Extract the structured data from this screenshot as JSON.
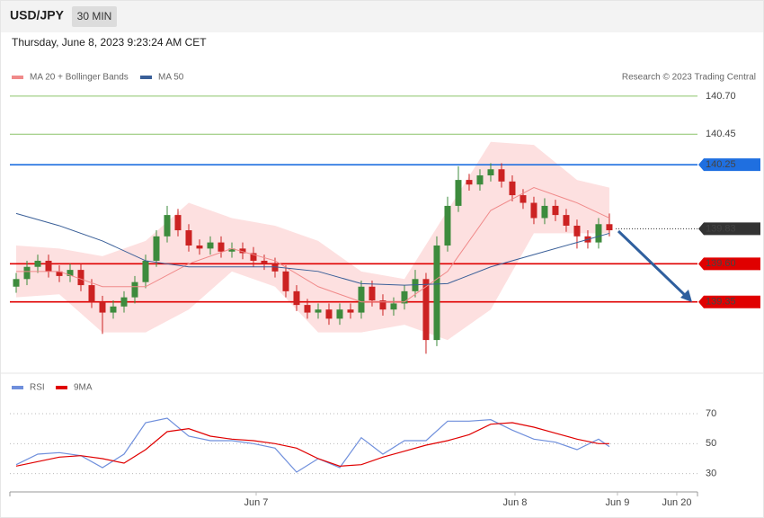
{
  "header": {
    "symbol": "USD/JPY",
    "interval": "30 MIN",
    "timestamp": "Thursday, June 8, 2023 9:23:24 AM CET"
  },
  "chart_data": [
    {
      "type": "candlestick",
      "annotation": "Research © 2023 Trading Central",
      "up_color": "#3d8b3d",
      "down_color": "#cc2222",
      "x": [
        0,
        1,
        2,
        3,
        4,
        5,
        6,
        7,
        8,
        9,
        10,
        11,
        12,
        13,
        14,
        15,
        16,
        17,
        18,
        19,
        20,
        21,
        22,
        23,
        24,
        25,
        26,
        27,
        28,
        29,
        30,
        31,
        32,
        33,
        34,
        35,
        36,
        37,
        38,
        39,
        40,
        41,
        42,
        43,
        44,
        45,
        46,
        47,
        48,
        49,
        50,
        51,
        52,
        53,
        54,
        55
      ],
      "open": [
        139.45,
        139.5,
        139.58,
        139.62,
        139.55,
        139.52,
        139.56,
        139.46,
        139.35,
        139.28,
        139.32,
        139.38,
        139.48,
        139.62,
        139.78,
        139.92,
        139.82,
        139.72,
        139.7,
        139.74,
        139.68,
        139.7,
        139.67,
        139.62,
        139.6,
        139.55,
        139.42,
        139.33,
        139.28,
        139.3,
        139.24,
        139.3,
        139.28,
        139.45,
        139.36,
        139.3,
        139.34,
        139.42,
        139.5,
        139.1,
        139.72,
        139.98,
        140.15,
        140.12,
        140.18,
        140.22,
        140.14,
        140.05,
        140.0,
        139.9,
        139.98,
        139.92,
        139.85,
        139.78,
        139.74,
        139.86
      ],
      "high": [
        139.54,
        139.62,
        139.66,
        139.66,
        139.59,
        139.6,
        139.6,
        139.5,
        139.39,
        139.36,
        139.42,
        139.52,
        139.66,
        139.82,
        139.98,
        139.96,
        139.86,
        139.76,
        139.78,
        139.78,
        139.74,
        139.74,
        139.71,
        139.66,
        139.64,
        139.59,
        139.46,
        139.37,
        139.34,
        139.34,
        139.34,
        139.34,
        139.49,
        139.49,
        139.4,
        139.38,
        139.46,
        139.56,
        139.54,
        139.78,
        140.04,
        140.24,
        140.19,
        140.22,
        140.26,
        140.26,
        140.18,
        140.09,
        140.04,
        140.03,
        140.02,
        139.96,
        139.89,
        139.82,
        139.9,
        139.93
      ],
      "low": [
        139.41,
        139.46,
        139.54,
        139.51,
        139.48,
        139.48,
        139.42,
        139.31,
        139.14,
        139.24,
        139.28,
        139.34,
        139.44,
        139.58,
        139.74,
        139.78,
        139.68,
        139.66,
        139.66,
        139.64,
        139.64,
        139.63,
        139.58,
        139.56,
        139.51,
        139.38,
        139.29,
        139.24,
        139.24,
        139.2,
        139.2,
        139.24,
        139.24,
        139.32,
        139.26,
        139.26,
        139.3,
        139.38,
        139.01,
        139.06,
        139.68,
        139.94,
        140.08,
        140.08,
        140.14,
        140.1,
        140.01,
        139.96,
        139.86,
        139.86,
        139.88,
        139.81,
        139.7,
        139.7,
        139.7,
        139.78
      ],
      "close": [
        139.5,
        139.58,
        139.62,
        139.55,
        139.52,
        139.56,
        139.46,
        139.35,
        139.28,
        139.32,
        139.38,
        139.48,
        139.62,
        139.78,
        139.92,
        139.82,
        139.72,
        139.7,
        139.74,
        139.68,
        139.7,
        139.67,
        139.62,
        139.6,
        139.55,
        139.42,
        139.33,
        139.28,
        139.3,
        139.24,
        139.3,
        139.28,
        139.45,
        139.36,
        139.3,
        139.34,
        139.42,
        139.5,
        139.1,
        139.72,
        139.98,
        140.15,
        140.12,
        140.18,
        140.22,
        140.14,
        140.05,
        140.0,
        139.9,
        139.98,
        139.92,
        139.85,
        139.78,
        139.74,
        139.86,
        139.82
      ],
      "xlim": [
        -0.5,
        63.17
      ],
      "ylim": [
        138.9,
        140.77
      ],
      "series": [
        {
          "name": "MA 20 + Bollinger Bands",
          "color": "#f08a8a",
          "band_color": "#fde0e0",
          "x": [
            0,
            4,
            8,
            12,
            16,
            20,
            24,
            28,
            32,
            36,
            40,
            44,
            48,
            52,
            55
          ],
          "values": [
            139.55,
            139.55,
            139.45,
            139.45,
            139.6,
            139.7,
            139.62,
            139.45,
            139.35,
            139.35,
            139.55,
            139.95,
            140.1,
            140.0,
            139.9
          ],
          "upper": [
            139.72,
            139.7,
            139.65,
            139.75,
            140.0,
            139.9,
            139.85,
            139.75,
            139.55,
            139.5,
            139.95,
            140.4,
            140.38,
            140.15,
            140.1
          ],
          "lower": [
            139.38,
            139.4,
            139.15,
            139.15,
            139.3,
            139.55,
            139.45,
            139.15,
            139.15,
            139.2,
            139.1,
            139.3,
            139.8,
            139.8,
            139.8
          ]
        },
        {
          "name": "MA 50",
          "color": "#3a5f98",
          "x": [
            0,
            4,
            8,
            12,
            16,
            20,
            24,
            28,
            32,
            36,
            40,
            44,
            48,
            52,
            55
          ],
          "values": [
            139.93,
            139.85,
            139.75,
            139.62,
            139.58,
            139.58,
            139.58,
            139.55,
            139.47,
            139.46,
            139.47,
            139.58,
            139.66,
            139.74,
            139.8
          ]
        }
      ],
      "levels": [
        {
          "value": 140.7,
          "label": "140.70",
          "color": "#8cc46a",
          "text_color": "#4e9a06",
          "boxed": false
        },
        {
          "value": 140.45,
          "color": "#8cc46a",
          "text_color": "#4e9a06",
          "boxed": false
        },
        {
          "value": 140.25,
          "color": "#1f6fe0",
          "text_color": "#ffffff",
          "boxed": true
        },
        {
          "value": 139.83,
          "color": "#333333",
          "text_color": "#ffffff",
          "boxed": true,
          "dotted": true
        },
        {
          "value": 139.6,
          "label": "139.60",
          "color": "#e00000",
          "text_color": "#ffffff",
          "boxed": true
        },
        {
          "value": 139.35,
          "color": "#e00000",
          "text_color": "#ffffff",
          "boxed": true
        }
      ]
    },
    {
      "type": "line",
      "x": [
        0,
        2,
        4,
        6,
        8,
        10,
        12,
        14,
        16,
        18,
        20,
        22,
        24,
        26,
        28,
        30,
        32,
        34,
        36,
        38,
        40,
        42,
        44,
        46,
        48,
        50,
        52,
        54,
        55
      ],
      "series": [
        {
          "name": "RSI",
          "color": "#6f8fdc",
          "values": [
            36,
            43,
            44,
            42,
            34,
            43,
            64,
            67,
            55,
            52,
            52,
            50,
            47,
            31,
            40,
            34,
            54,
            43,
            52,
            52,
            65,
            65,
            66,
            59,
            53,
            51,
            46,
            53,
            48
          ]
        },
        {
          "name": "9MA",
          "color": "#e00000",
          "values": [
            35,
            38,
            41,
            42,
            40,
            37,
            46,
            58,
            60,
            55,
            53,
            52,
            50,
            47,
            40,
            35,
            36,
            41,
            45,
            49,
            52,
            56,
            63,
            64,
            61,
            57,
            53,
            50,
            50
          ]
        }
      ],
      "xlim": [
        -0.5,
        63.17
      ],
      "ylim": [
        22,
        79
      ],
      "yticks": [
        30,
        50,
        70
      ],
      "grid": true,
      "xticks": [
        {
          "value": 22.25,
          "label": "Jun 7"
        },
        {
          "value": 46.25,
          "label": "Jun 8"
        },
        {
          "value": 55.75,
          "label": "Jun 9"
        },
        {
          "value": 61.25,
          "label": "Jun 20"
        }
      ]
    }
  ]
}
